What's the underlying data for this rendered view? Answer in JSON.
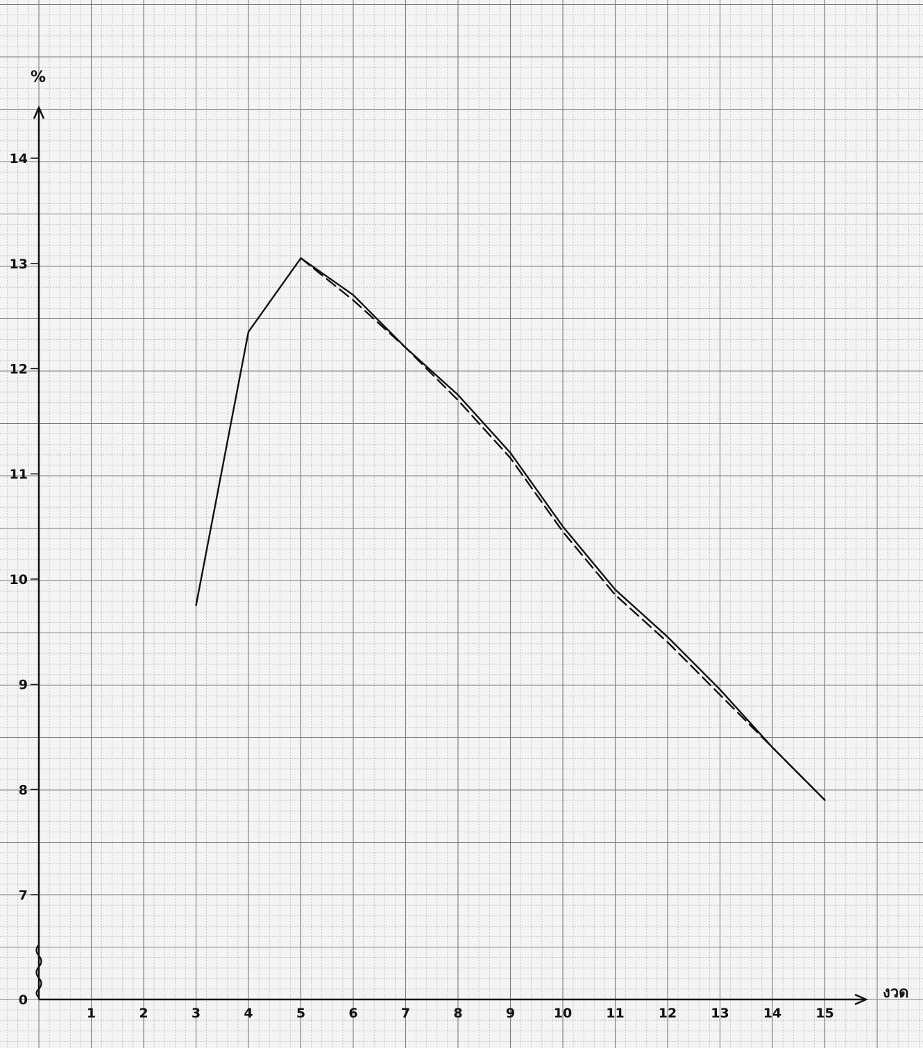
{
  "chart_data": {
    "type": "line",
    "title": "",
    "xlabel": "งวด",
    "ylabel": "%",
    "x_ticks": [
      "1",
      "2",
      "3",
      "4",
      "5",
      "6",
      "7",
      "8",
      "9",
      "10",
      "11",
      "12",
      "13",
      "14",
      "15"
    ],
    "y_ticks": [
      "0",
      "7",
      "8",
      "9",
      "10",
      "11",
      "12",
      "13",
      "14"
    ],
    "xlim": [
      0,
      15
    ],
    "ylim": [
      6.5,
      14.5
    ],
    "y_axis_break": true,
    "grid": true,
    "series": [
      {
        "style": "solid",
        "x": [
          3,
          4,
          5,
          6,
          7,
          8,
          9,
          10,
          11,
          12,
          13,
          14,
          15
        ],
        "y": [
          9.75,
          12.35,
          13.05,
          12.7,
          12.2,
          11.75,
          11.2,
          10.5,
          9.9,
          9.45,
          8.95,
          8.4,
          7.9
        ]
      },
      {
        "style": "dashed",
        "x": [
          5,
          6,
          7,
          8,
          9,
          10,
          11,
          12,
          13,
          14,
          15
        ],
        "y": [
          13.05,
          12.65,
          12.2,
          11.7,
          11.15,
          10.45,
          9.85,
          9.4,
          8.9,
          8.4,
          7.9
        ]
      }
    ],
    "colors": {
      "line": "#111111",
      "grid_major": "#7a7a7a",
      "grid_minor": "#b5b5b5",
      "paper": "#f4f4f4"
    }
  }
}
